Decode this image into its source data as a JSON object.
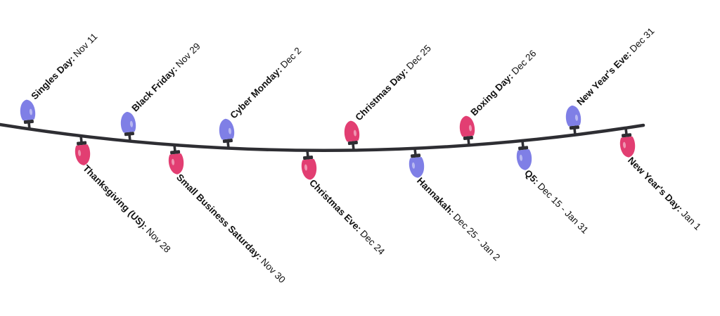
{
  "colors": {
    "purple": "#7f7fe6",
    "pink": "#e23e72",
    "wire": "#2e2e33",
    "highlight": "#ffffff"
  },
  "lights": [
    {
      "name": "Singles Day",
      "date": "Nov 11",
      "side": "above",
      "color": "purple"
    },
    {
      "name": "Thanksgiving (US)",
      "date": "Nov 28",
      "side": "below",
      "color": "pink"
    },
    {
      "name": "Black Friday",
      "date": "Nov 29",
      "side": "above",
      "color": "purple"
    },
    {
      "name": "Small Business Saturday",
      "date": "Nov 30",
      "side": "below",
      "color": "pink"
    },
    {
      "name": "Cyber Monday",
      "date": "Dec 2",
      "side": "above",
      "color": "purple"
    },
    {
      "name": "Christmas Eve",
      "date": "Dec 24",
      "side": "below",
      "color": "pink"
    },
    {
      "name": "Christmas Day",
      "date": "Dec 25",
      "side": "above",
      "color": "pink"
    },
    {
      "name": "Hannakah",
      "date": "Dec 25 - Jan 2",
      "side": "below",
      "color": "purple"
    },
    {
      "name": "Boxing Day",
      "date": "Dec 26",
      "side": "above",
      "color": "pink"
    },
    {
      "name": "Q5",
      "date": "Dec 15 - Jan 31",
      "side": "below",
      "color": "purple"
    },
    {
      "name": "New Year's Eve",
      "date": "Dec 31",
      "side": "above",
      "color": "purple"
    },
    {
      "name": "New Year's Day",
      "date": "Jan 1",
      "side": "below",
      "color": "pink"
    }
  ]
}
